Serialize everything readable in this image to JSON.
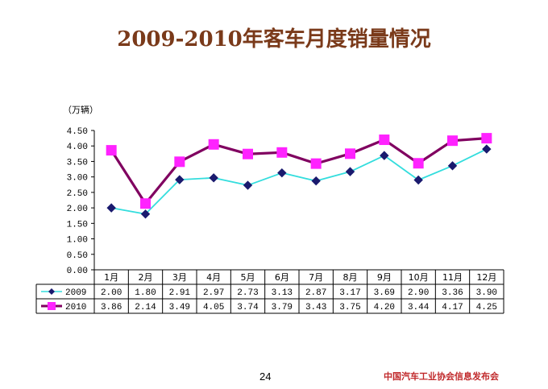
{
  "title": "2009-2010年客车月度销量情况",
  "unit_label": "（万辆）",
  "page_number": "24",
  "footer": "中国汽车工业协会信息发布会",
  "chart_data": {
    "type": "line",
    "title": "2009-2010年客车月度销量情况",
    "ylabel": "（万辆）",
    "xlabel": "",
    "ylim": [
      0,
      4.5
    ],
    "yticks": [
      "0.00",
      "0.50",
      "1.00",
      "1.50",
      "2.00",
      "2.50",
      "3.00",
      "3.50",
      "4.00",
      "4.50"
    ],
    "categories": [
      "1月",
      "2月",
      "3月",
      "4月",
      "5月",
      "6月",
      "7月",
      "8月",
      "9月",
      "10月",
      "11月",
      "12月"
    ],
    "grid": false,
    "legend": "data-table-left",
    "series": [
      {
        "name": "2009",
        "color": "#33dddd",
        "marker_color": "#1a1a6e",
        "marker": "diamond",
        "values": [
          2.0,
          1.8,
          2.91,
          2.97,
          2.73,
          3.13,
          2.87,
          3.17,
          3.69,
          2.9,
          3.36,
          3.9
        ],
        "labels": [
          "2.00",
          "1.80",
          "2.91",
          "2.97",
          "2.73",
          "3.13",
          "2.87",
          "3.17",
          "3.69",
          "2.90",
          "3.36",
          "3.90"
        ]
      },
      {
        "name": "2010",
        "color": "#800060",
        "marker_color": "#ff22ff",
        "marker": "square",
        "values": [
          3.86,
          2.14,
          3.49,
          4.05,
          3.74,
          3.79,
          3.43,
          3.75,
          4.2,
          3.44,
          4.17,
          4.25
        ],
        "labels": [
          "3.86",
          "2.14",
          "3.49",
          "4.05",
          "3.74",
          "3.79",
          "3.43",
          "3.75",
          "4.20",
          "3.44",
          "4.17",
          "4.25"
        ]
      }
    ]
  }
}
